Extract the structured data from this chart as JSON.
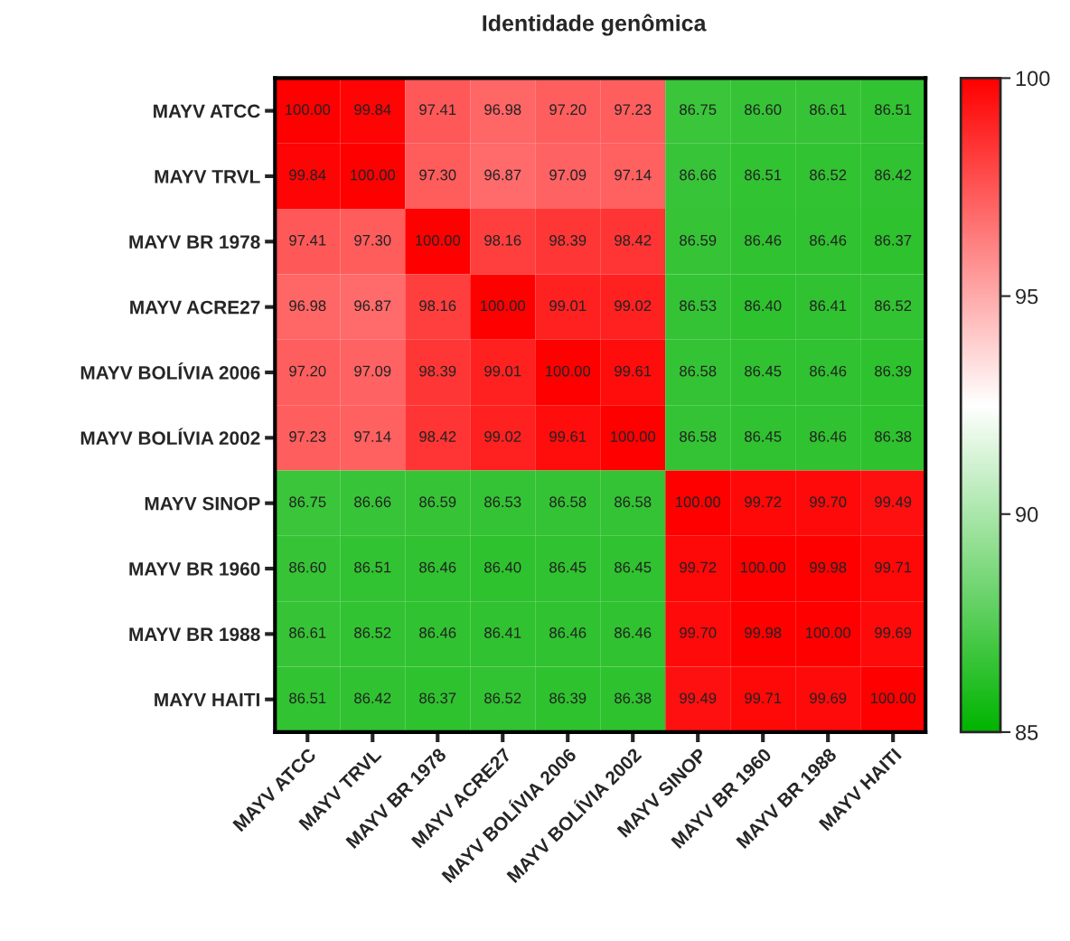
{
  "chart_data": {
    "type": "heatmap",
    "title": "Identidade genômica",
    "categories": [
      "MAYV ATCC",
      "MAYV TRVL",
      "MAYV BR 1978",
      "MAYV ACRE27",
      "MAYV BOLÍVIA 2006",
      "MAYV BOLÍVIA 2002",
      "MAYV SINOP",
      "MAYV BR 1960",
      "MAYV BR 1988",
      "MAYV HAITI"
    ],
    "y_categories": [
      "MAYV ATCC",
      "MAYV TRVL",
      "MAYV BR 1978",
      "MAYV ACRE27",
      "MAYV BOLÍVIA 2006",
      "MAYV BOLÍVIA 2002",
      "MAYV SINOP",
      "MAYV BR 1960",
      "MAYV BR 1988",
      "MAYV HAITI"
    ],
    "cells": [
      [
        100.0,
        99.84,
        97.41,
        96.98,
        97.2,
        97.23,
        86.75,
        86.6,
        86.61,
        86.51
      ],
      [
        99.84,
        100.0,
        97.3,
        96.87,
        97.09,
        97.14,
        86.66,
        86.51,
        86.52,
        86.42
      ],
      [
        97.41,
        97.3,
        100.0,
        98.16,
        98.39,
        98.42,
        86.59,
        86.46,
        86.46,
        86.37
      ],
      [
        96.98,
        96.87,
        98.16,
        100.0,
        99.01,
        99.02,
        86.53,
        86.4,
        86.41,
        86.52
      ],
      [
        97.2,
        97.09,
        98.39,
        99.01,
        100.0,
        99.61,
        86.58,
        86.45,
        86.46,
        86.39
      ],
      [
        97.23,
        97.14,
        98.42,
        99.02,
        99.61,
        100.0,
        86.58,
        86.45,
        86.46,
        86.38
      ],
      [
        86.75,
        86.66,
        86.59,
        86.53,
        86.58,
        86.58,
        100.0,
        99.72,
        99.7,
        99.49
      ],
      [
        86.6,
        86.51,
        86.46,
        86.4,
        86.45,
        86.45,
        99.72,
        100.0,
        99.98,
        99.71
      ],
      [
        86.61,
        86.52,
        86.46,
        86.41,
        86.46,
        86.46,
        99.7,
        99.98,
        100.0,
        99.69
      ],
      [
        86.51,
        86.42,
        86.37,
        86.52,
        86.39,
        86.38,
        99.49,
        99.71,
        99.69,
        100.0
      ]
    ],
    "cell_labels": [
      [
        "100.00",
        "99.84",
        "97.41",
        "96.98",
        "97.20",
        "97.23",
        "86.75",
        "86.60",
        "86.61",
        "86.51"
      ],
      [
        "99.84",
        "100.00",
        "97.30",
        "96.87",
        "97.09",
        "97.14",
        "86.66",
        "86.51",
        "86.52",
        "86.42"
      ],
      [
        "97.41",
        "97.30",
        "100.00",
        "98.16",
        "98.39",
        "98.42",
        "86.59",
        "86.46",
        "86.46",
        "86.37"
      ],
      [
        "96.98",
        "96.87",
        "98.16",
        "100.00",
        "99.01",
        "99.02",
        "86.53",
        "86.40",
        "86.41",
        "86.52"
      ],
      [
        "97.20",
        "97.09",
        "98.39",
        "99.01",
        "100.00",
        "99.61",
        "86.58",
        "86.45",
        "86.46",
        "86.39"
      ],
      [
        "97.23",
        "97.14",
        "98.42",
        "99.02",
        "99.61",
        "100.00",
        "86.58",
        "86.45",
        "86.46",
        "86.38"
      ],
      [
        "86.75",
        "86.66",
        "86.59",
        "86.53",
        "86.58",
        "86.58",
        "100.00",
        "99.72",
        "99.70",
        "99.49"
      ],
      [
        "86.60",
        "86.51",
        "86.46",
        "86.40",
        "86.45",
        "86.45",
        "99.72",
        "100.00",
        "99.98",
        "99.71"
      ],
      [
        "86.61",
        "86.52",
        "86.46",
        "86.41",
        "86.46",
        "86.46",
        "99.70",
        "99.98",
        "100.00",
        "99.69"
      ],
      [
        "86.51",
        "86.42",
        "86.37",
        "86.52",
        "86.39",
        "86.38",
        "99.49",
        "99.71",
        "99.69",
        "100.00"
      ]
    ],
    "data_labels": true,
    "clim": [
      85,
      100
    ],
    "cticks": [
      85,
      90,
      95,
      100
    ]
  }
}
